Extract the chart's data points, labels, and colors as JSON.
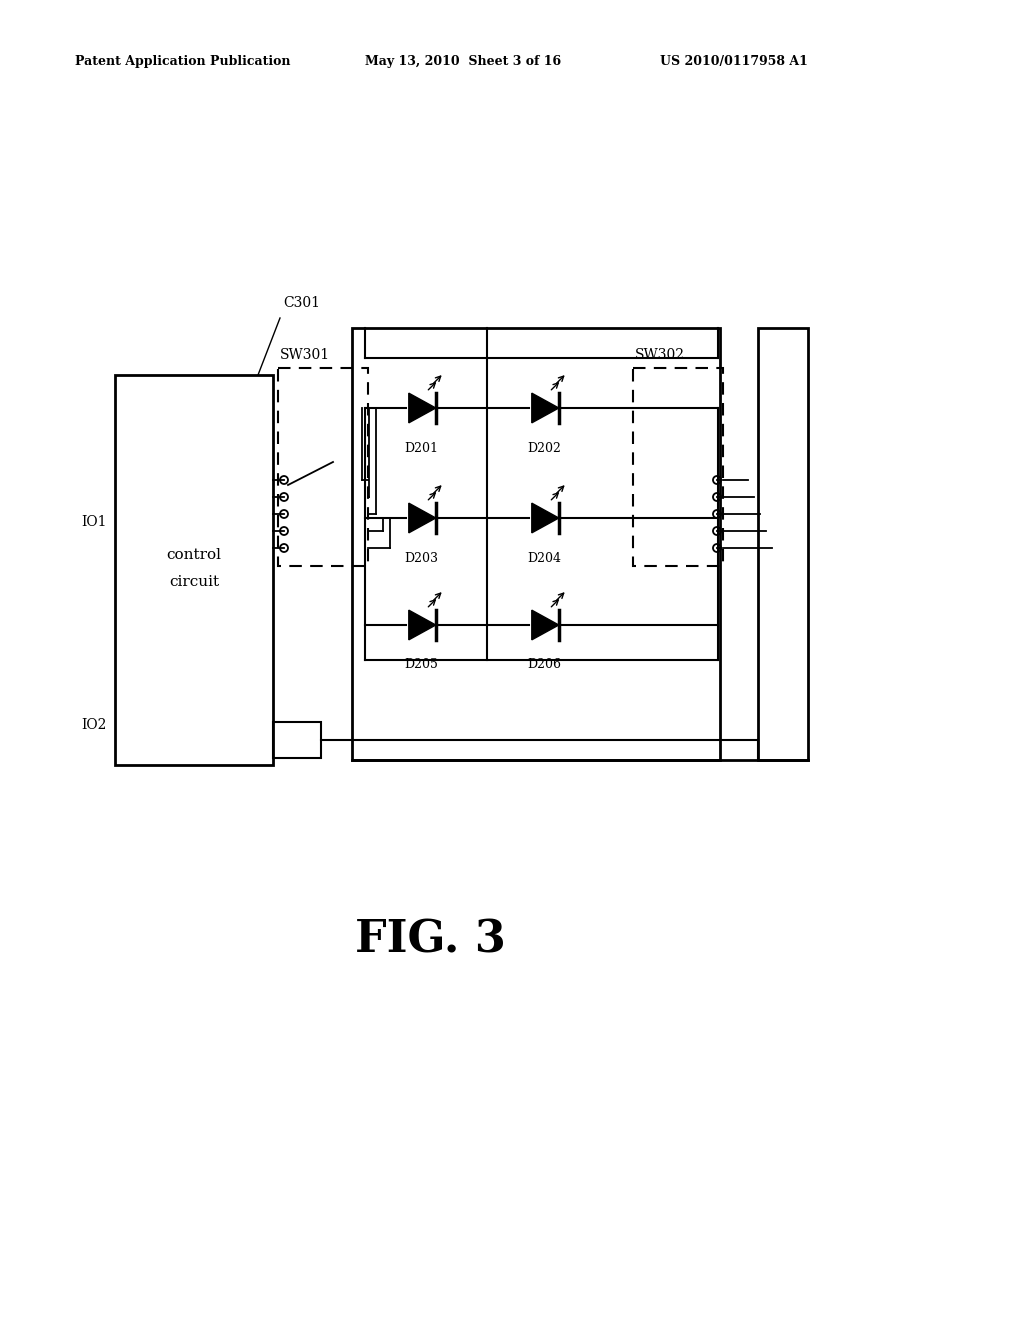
{
  "bg_color": "#ffffff",
  "header_left": "Patent Application Publication",
  "header_mid": "May 13, 2010  Sheet 3 of 16",
  "header_right": "US 2010/0117958 A1",
  "fig_label": "FIG. 3"
}
